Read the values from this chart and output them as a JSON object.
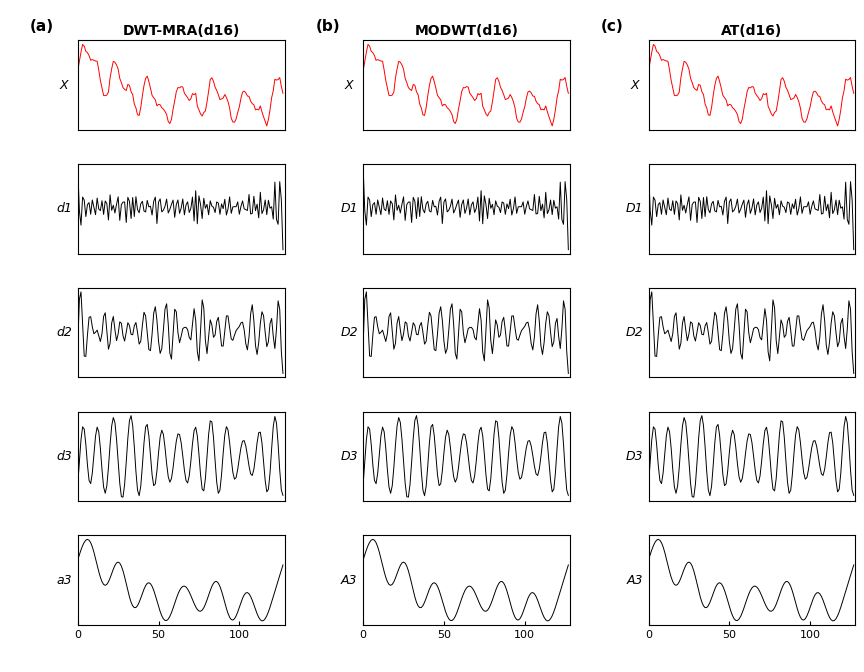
{
  "titles": [
    "DWT-MRA(d16)",
    "MODWT(d16)",
    "AT(d16)"
  ],
  "panel_labels": [
    "(a)",
    "(b)",
    "(c)"
  ],
  "row_labels_col0": [
    "X",
    "d1",
    "d2",
    "d3",
    "a3"
  ],
  "row_labels_col1": [
    "X",
    "D1",
    "D2",
    "D3",
    "A3"
  ],
  "row_labels_col2": [
    "X",
    "D1",
    "D2",
    "D3",
    "A3"
  ],
  "n_rows": 5,
  "n_cols": 3,
  "xlim": [
    0,
    128
  ],
  "xticks": [
    0,
    50,
    100
  ],
  "background_color": "#ffffff",
  "signal_color": "#ff0000",
  "detail_color": "#000000",
  "title_fontsize": 10,
  "label_fontsize": 9,
  "tick_fontsize": 8,
  "seed": 42,
  "n_points": 128
}
